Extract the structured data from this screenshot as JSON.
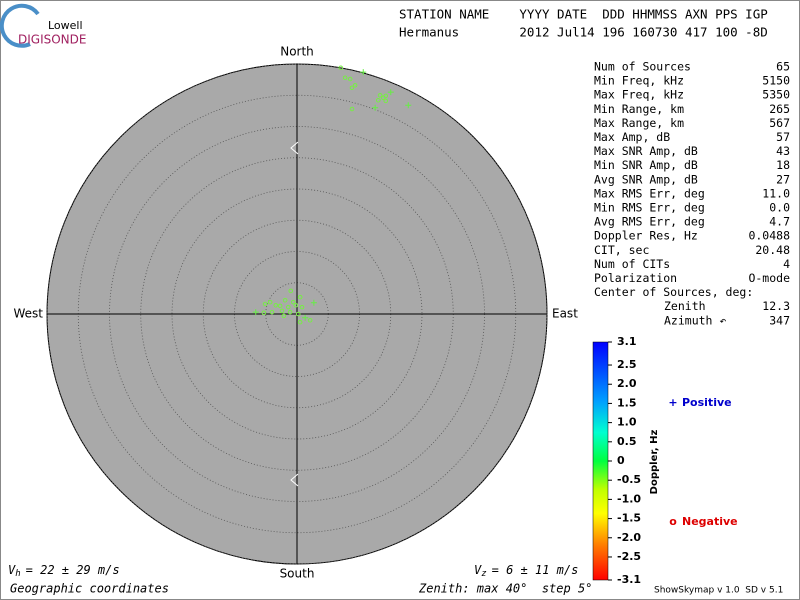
{
  "logo": {
    "top": "Lowell",
    "bottom": "DIGISONDE"
  },
  "header": {
    "names": "STATION NAME    YYYY DATE  DDD HHMMSS AXN PPS IGP",
    "values": "Hermanus        2012 Jul14 196 160730 417 100 -8D"
  },
  "chart_data": {
    "type": "skymap",
    "directions": {
      "north": "North",
      "south": "South",
      "east": "East",
      "west": "West"
    },
    "rlim": [
      0,
      40
    ],
    "rticks": [
      5,
      10,
      15,
      20,
      25,
      30,
      35,
      40
    ],
    "series": [
      {
        "name": "Positive",
        "marker": "+",
        "color": "#66ee44",
        "legend_color": "#0000cc",
        "x": [
          15.0,
          17.8,
          10.6,
          12.5,
          2.7,
          -6.6,
          1.3
        ],
        "y": [
          35.5,
          33.4,
          38.7,
          33.0,
          1.8,
          0.3,
          -0.6
        ]
      },
      {
        "name": "Negative",
        "marker": "o",
        "color": "#77ee44",
        "legend_color": "#dd0000",
        "x": [
          7.0,
          7.7,
          8.5,
          8.8,
          9.3,
          13.3,
          13.8,
          14.2,
          13.0,
          14.2,
          8.8,
          -1.0,
          0.5,
          -1.9,
          -0.6,
          -5.1,
          -4.3,
          -3.4,
          -2.7,
          -1.4,
          -0.2,
          0.8,
          -5.3,
          -4.0,
          -2.4,
          -1.1,
          0.2,
          2.1,
          0.5,
          -2.1
        ],
        "y": [
          39.4,
          37.8,
          37.6,
          36.2,
          36.6,
          35.0,
          34.6,
          34.9,
          34.2,
          34.1,
          32.8,
          3.7,
          2.7,
          2.2,
          1.9,
          1.6,
          1.9,
          1.4,
          1.3,
          1.1,
          1.4,
          1.1,
          0.2,
          0.3,
          0.5,
          0.3,
          0.0,
          -1.0,
          -1.3,
          -0.3
        ]
      }
    ],
    "colorbar": {
      "label": "Doppler, Hz",
      "lim": [
        -3.1,
        3.1
      ],
      "ticks": [
        3.1,
        2.5,
        {
          "value": 2,
          "label": "2.0"
        },
        1.5,
        {
          "value": 1,
          "label": "1.0"
        },
        0.5,
        0,
        -0.5,
        {
          "value": -1,
          "label": "-1.0"
        },
        -1.5,
        {
          "value": -2,
          "label": "-2.0"
        },
        -2.5,
        -3.1
      ]
    }
  },
  "stats": {
    "rows": [
      [
        "Num of Sources",
        "65"
      ],
      [
        "Min Freq, kHz",
        "5150"
      ],
      [
        "Max Freq, kHz",
        "5350"
      ],
      [
        "Min Range, km",
        "265"
      ],
      [
        "Max Range, km",
        "567"
      ],
      [
        "Max Amp, dB",
        "57"
      ],
      [
        "Max SNR Amp, dB",
        "43"
      ],
      [
        "Min SNR Amp, dB",
        "18"
      ],
      [
        "Avg SNR Amp, dB",
        "27"
      ],
      [
        "Max RMS Err, deg",
        "11.0"
      ],
      [
        "Min RMS Err, deg",
        "0.0"
      ],
      [
        "Avg RMS Err, deg",
        "4.7"
      ],
      [
        "Doppler Res, Hz",
        "0.0488"
      ],
      [
        "CIT, sec",
        "20.48"
      ],
      [
        "Num of CITs",
        "4"
      ],
      [
        "Polarization",
        "O-mode"
      ]
    ],
    "center": {
      "title": "Center of Sources, deg:",
      "rows": [
        [
          "Zenith",
          "12.3"
        ],
        [
          "Azimuth ↶",
          "347"
        ]
      ]
    }
  },
  "footer": {
    "vh": {
      "symbol": "V",
      "sub": "h",
      "text": "= 22 ± 29 m/s"
    },
    "vz": {
      "symbol": "V",
      "sub": "z",
      "text": "= 6 ± 11 m/s"
    },
    "coords": "Geographic coordinates",
    "zenith": "Zenith: max 40°  step 5°",
    "version": "ShowSkymap v 1.0  SD v 5.1"
  }
}
